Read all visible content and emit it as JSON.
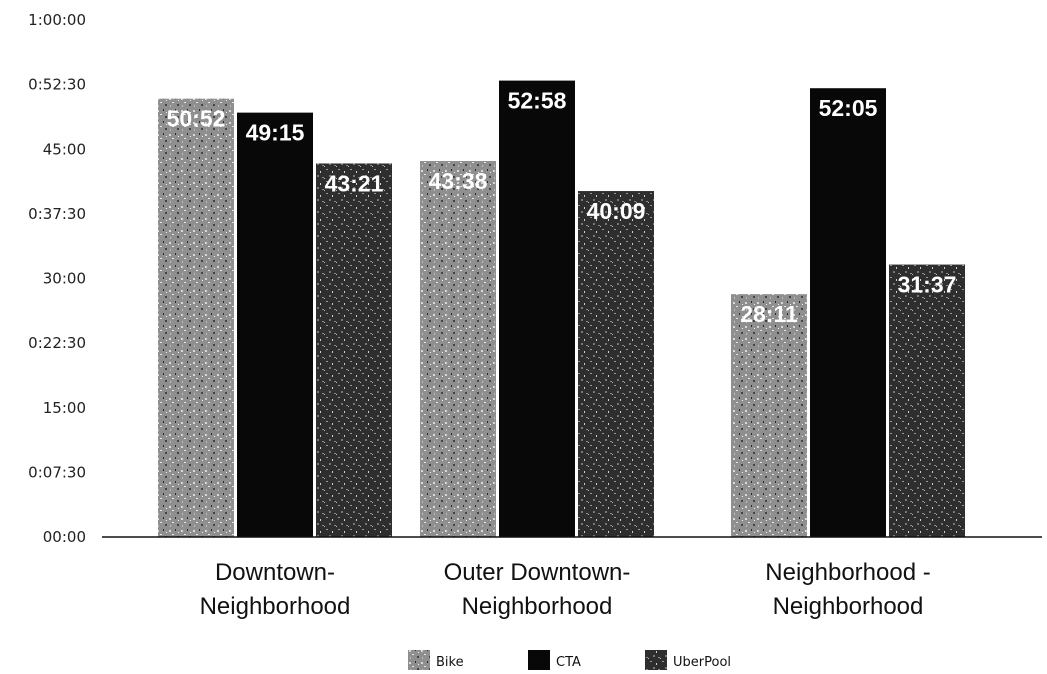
{
  "chart_data": {
    "type": "bar",
    "categories": [
      [
        "Downtown-",
        "Neighborhood"
      ],
      [
        "Outer Downtown-",
        "Neighborhood"
      ],
      [
        "Neighborhood -",
        "Neighborhood"
      ]
    ],
    "series": [
      {
        "name": "Bike",
        "values": [
          3052,
          2618,
          1691
        ],
        "labels": [
          "50:52",
          "43:38",
          "28:11"
        ],
        "color": "#8a8a8a",
        "texture": "speckled-light"
      },
      {
        "name": "CTA",
        "values": [
          2955,
          3178,
          3125
        ],
        "labels": [
          "49:15",
          "52:58",
          "52:05"
        ],
        "color": "#080808",
        "texture": "solid"
      },
      {
        "name": "UberPool",
        "values": [
          2601,
          2409,
          1897
        ],
        "labels": [
          "43:21",
          "40:09",
          "31:37"
        ],
        "color": "#3a3a3a",
        "texture": "speckled-dark"
      }
    ],
    "y_unit": "seconds",
    "ylim": [
      0,
      3600
    ],
    "yticks": [
      0,
      450,
      900,
      1350,
      1800,
      2250,
      2700,
      3150,
      3600
    ],
    "ytick_labels": [
      "00:00",
      "0:07:30",
      "15:00",
      "0:22:30",
      "30:00",
      "0:37:30",
      "45:00",
      "0:52:30",
      "1:00:00"
    ],
    "title": "",
    "xlabel": "",
    "ylabel": "",
    "grid": false,
    "legend_position": "bottom"
  }
}
